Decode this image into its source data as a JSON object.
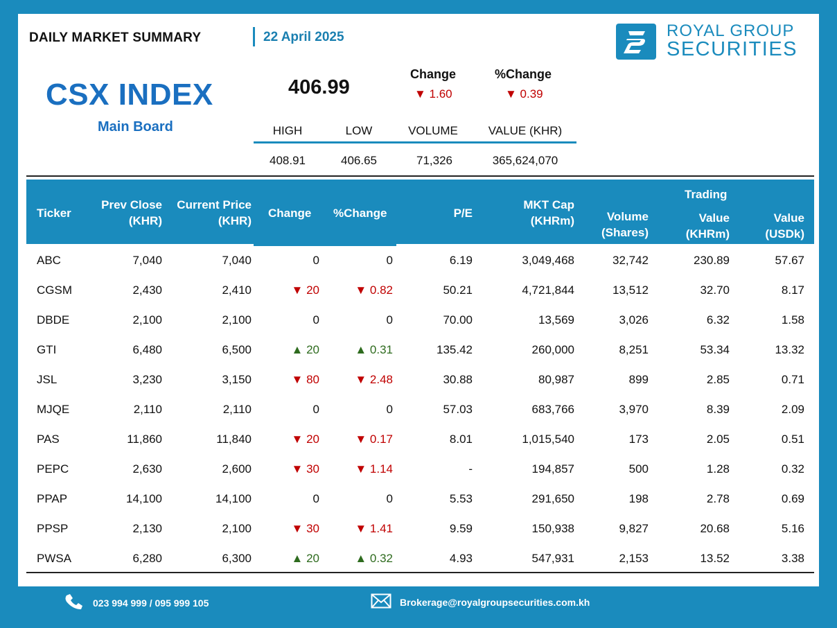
{
  "header": {
    "title": "DAILY MARKET SUMMARY",
    "date": "22 April 2025"
  },
  "brand": {
    "line1": "ROYAL GROUP",
    "line2": "SECURITIES",
    "color": "#1a8bbd"
  },
  "index": {
    "name": "CSX INDEX",
    "board": "Main Board",
    "value": "406.99",
    "change_label": "Change",
    "pct_change_label": "%Change",
    "change": "▼ 1.60",
    "pct_change": "▼ 0.39"
  },
  "stats": {
    "labels": [
      "HIGH",
      "LOW",
      "VOLUME",
      "VALUE (KHR)"
    ],
    "values": [
      "408.91",
      "406.65",
      "71,326",
      "365,624,070"
    ]
  },
  "table": {
    "headers": {
      "ticker": "Ticker",
      "prev_close": [
        "Prev Close",
        "(KHR)"
      ],
      "current_price": [
        "Current Price",
        "(KHR)"
      ],
      "change": "Change",
      "pct_change": "%Change",
      "pe": "P/E",
      "mkt_cap": [
        "MKT Cap",
        "(KHRm)"
      ],
      "volume": [
        "Volume",
        "(Shares)"
      ],
      "trading": "Trading",
      "value_khr": [
        "Value",
        "(KHRm)"
      ],
      "value_usd": [
        "Value",
        "(USDk)"
      ]
    },
    "rows": [
      {
        "ticker": "ABC",
        "prev": "7,040",
        "cur": "7,040",
        "chg": "0",
        "pct": "0",
        "dir": "flat",
        "pe": "6.19",
        "mcap": "3,049,468",
        "vol": "32,742",
        "vkhr": "230.89",
        "vusd": "57.67"
      },
      {
        "ticker": "CGSM",
        "prev": "2,430",
        "cur": "2,410",
        "chg": "▼ 20",
        "pct": "▼ 0.82",
        "dir": "down",
        "pe": "50.21",
        "mcap": "4,721,844",
        "vol": "13,512",
        "vkhr": "32.70",
        "vusd": "8.17"
      },
      {
        "ticker": "DBDE",
        "prev": "2,100",
        "cur": "2,100",
        "chg": "0",
        "pct": "0",
        "dir": "flat",
        "pe": "70.00",
        "mcap": "13,569",
        "vol": "3,026",
        "vkhr": "6.32",
        "vusd": "1.58"
      },
      {
        "ticker": "GTI",
        "prev": "6,480",
        "cur": "6,500",
        "chg": "▲ 20",
        "pct": "▲ 0.31",
        "dir": "up",
        "pe": "135.42",
        "mcap": "260,000",
        "vol": "8,251",
        "vkhr": "53.34",
        "vusd": "13.32"
      },
      {
        "ticker": "JSL",
        "prev": "3,230",
        "cur": "3,150",
        "chg": "▼ 80",
        "pct": "▼ 2.48",
        "dir": "down",
        "pe": "30.88",
        "mcap": "80,987",
        "vol": "899",
        "vkhr": "2.85",
        "vusd": "0.71"
      },
      {
        "ticker": "MJQE",
        "prev": "2,110",
        "cur": "2,110",
        "chg": "0",
        "pct": "0",
        "dir": "flat",
        "pe": "57.03",
        "mcap": "683,766",
        "vol": "3,970",
        "vkhr": "8.39",
        "vusd": "2.09"
      },
      {
        "ticker": "PAS",
        "prev": "11,860",
        "cur": "11,840",
        "chg": "▼ 20",
        "pct": "▼ 0.17",
        "dir": "down",
        "pe": "8.01",
        "mcap": "1,015,540",
        "vol": "173",
        "vkhr": "2.05",
        "vusd": "0.51"
      },
      {
        "ticker": "PEPC",
        "prev": "2,630",
        "cur": "2,600",
        "chg": "▼ 30",
        "pct": "▼ 1.14",
        "dir": "down",
        "pe": "-",
        "mcap": "194,857",
        "vol": "500",
        "vkhr": "1.28",
        "vusd": "0.32"
      },
      {
        "ticker": "PPAP",
        "prev": "14,100",
        "cur": "14,100",
        "chg": "0",
        "pct": "0",
        "dir": "flat",
        "pe": "5.53",
        "mcap": "291,650",
        "vol": "198",
        "vkhr": "2.78",
        "vusd": "0.69"
      },
      {
        "ticker": "PPSP",
        "prev": "2,130",
        "cur": "2,100",
        "chg": "▼ 30",
        "pct": "▼ 1.41",
        "dir": "down",
        "pe": "9.59",
        "mcap": "150,938",
        "vol": "9,827",
        "vkhr": "20.68",
        "vusd": "5.16"
      },
      {
        "ticker": "PWSA",
        "prev": "6,280",
        "cur": "6,300",
        "chg": "▲ 20",
        "pct": "▲ 0.32",
        "dir": "up",
        "pe": "4.93",
        "mcap": "547,931",
        "vol": "2,153",
        "vkhr": "13.52",
        "vusd": "3.38"
      }
    ]
  },
  "footer": {
    "phone": "023 994 999 / 095 999 105",
    "email": "Brokerage@royalgroupsecurities.com.kh",
    "phone_icon": "phone-icon",
    "email_icon": "mail-icon"
  },
  "colors": {
    "accent": "#1a8bbd",
    "index_blue": "#1a6fc0",
    "down": "#c00000",
    "up": "#2e6b1e"
  }
}
